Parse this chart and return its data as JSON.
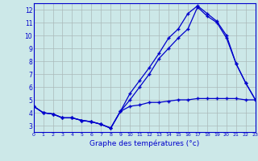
{
  "title": "Graphe des températures (°c)",
  "background_color": "#cce8e8",
  "grid_color": "#aababa",
  "line_color": "#0000cc",
  "hours": [
    0,
    1,
    2,
    3,
    4,
    5,
    6,
    7,
    8,
    9,
    10,
    11,
    12,
    13,
    14,
    15,
    16,
    17,
    18,
    19,
    20,
    21,
    22,
    23
  ],
  "line1": [
    4.5,
    4.0,
    3.9,
    3.6,
    3.6,
    3.4,
    3.3,
    3.1,
    2.8,
    4.1,
    5.5,
    6.5,
    7.5,
    8.6,
    9.8,
    10.5,
    11.7,
    12.3,
    11.7,
    11.1,
    10.0,
    7.8,
    6.3,
    5.0
  ],
  "line2": [
    4.5,
    4.0,
    3.9,
    3.6,
    3.6,
    3.4,
    3.3,
    3.1,
    2.8,
    4.1,
    5.0,
    6.0,
    7.0,
    8.2,
    9.0,
    9.8,
    10.5,
    12.2,
    11.5,
    11.0,
    9.8,
    7.8,
    6.3,
    5.0
  ],
  "line3": [
    4.5,
    4.0,
    3.9,
    3.6,
    3.6,
    3.4,
    3.3,
    3.1,
    2.8,
    4.1,
    4.5,
    4.6,
    4.8,
    4.8,
    4.9,
    5.0,
    5.0,
    5.1,
    5.1,
    5.1,
    5.1,
    5.1,
    5.0,
    5.0
  ],
  "ylim": [
    2.5,
    12.5
  ],
  "xlim": [
    0,
    23
  ],
  "yticks": [
    3,
    4,
    5,
    6,
    7,
    8,
    9,
    10,
    11,
    12
  ],
  "xticks": [
    0,
    1,
    2,
    3,
    4,
    5,
    6,
    7,
    8,
    9,
    10,
    11,
    12,
    13,
    14,
    15,
    16,
    17,
    18,
    19,
    20,
    21,
    22,
    23
  ]
}
